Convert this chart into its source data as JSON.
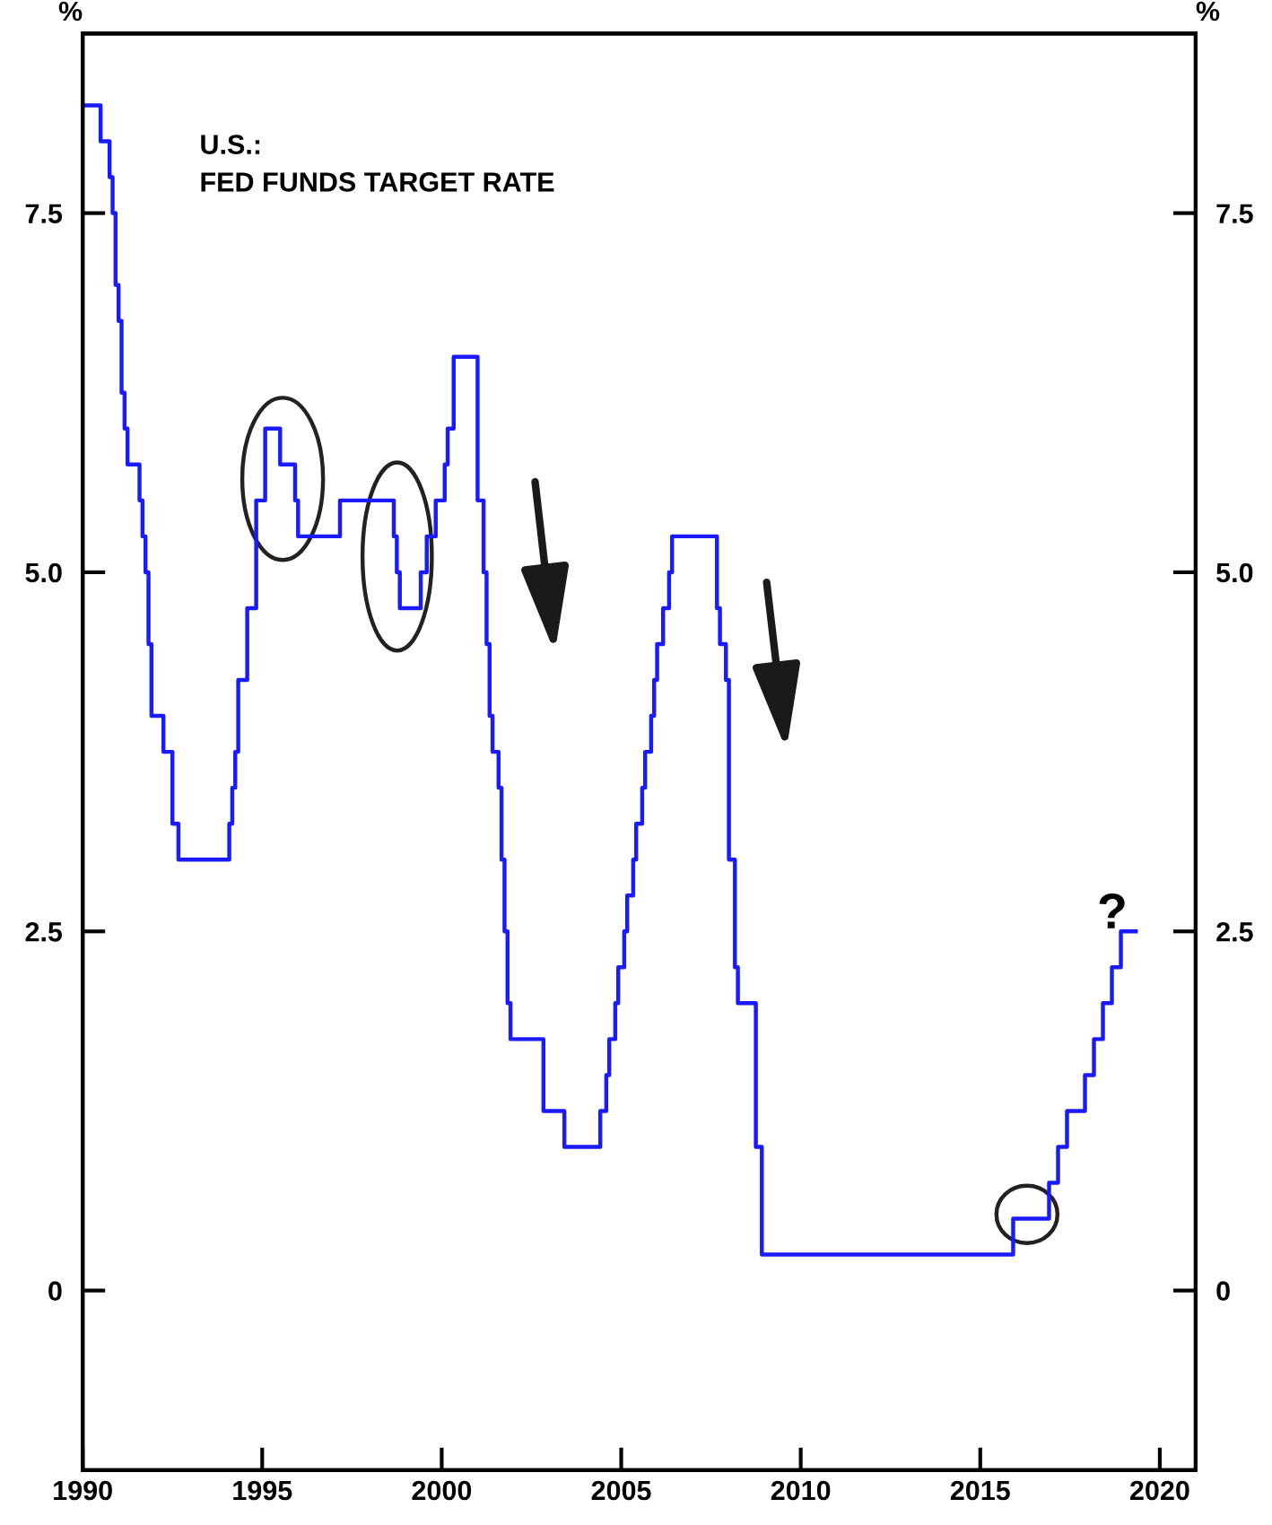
{
  "chart_data": {
    "type": "step",
    "title": "U.S.:\nFED FUNDS TARGET RATE",
    "ylabel": "%",
    "y2label": "%",
    "x": [
      "1990-01",
      "1990-07",
      "1990-10",
      "1990-11",
      "1990-12",
      "1991-01",
      "1991-02",
      "1991-03",
      "1991-04",
      "1991-08",
      "1991-09",
      "1991-10",
      "1991-11",
      "1991-12",
      "1992-04",
      "1992-07",
      "1992-09",
      "1994-02",
      "1994-03",
      "1994-04",
      "1994-05",
      "1994-08",
      "1994-11",
      "1995-02",
      "1995-07",
      "1995-12",
      "1996-01",
      "1997-03",
      "1998-09",
      "1998-10",
      "1998-11",
      "1999-06",
      "1999-08",
      "1999-11",
      "2000-02",
      "2000-03",
      "2000-05",
      "2001-01",
      "2001-03",
      "2001-04",
      "2001-05",
      "2001-06",
      "2001-08",
      "2001-09",
      "2001-10",
      "2001-11",
      "2001-12",
      "2002-11",
      "2003-06",
      "2004-06",
      "2004-08",
      "2004-09",
      "2004-11",
      "2004-12",
      "2005-02",
      "2005-03",
      "2005-05",
      "2005-06",
      "2005-08",
      "2005-09",
      "2005-11",
      "2005-12",
      "2006-01",
      "2006-03",
      "2006-05",
      "2006-06",
      "2007-09",
      "2007-10",
      "2007-12",
      "2008-01",
      "2008-03",
      "2008-04",
      "2008-10",
      "2008-12",
      "2015-12",
      "2016-12",
      "2017-03",
      "2017-06",
      "2017-12",
      "2018-03",
      "2018-06",
      "2018-09",
      "2018-12",
      "2019-05"
    ],
    "series": [
      {
        "color": "#1a1aff",
        "values": [
          8.25,
          8.0,
          7.75,
          7.5,
          7.0,
          6.75,
          6.25,
          6.0,
          5.75,
          5.5,
          5.25,
          5.0,
          4.5,
          4.0,
          3.75,
          3.25,
          3.0,
          3.25,
          3.5,
          3.75,
          4.25,
          4.75,
          5.5,
          6.0,
          5.75,
          5.5,
          5.25,
          5.5,
          5.25,
          5.0,
          4.75,
          5.0,
          5.25,
          5.5,
          5.75,
          6.0,
          6.5,
          5.5,
          5.0,
          4.5,
          4.0,
          3.75,
          3.5,
          3.0,
          2.5,
          2.0,
          1.75,
          1.25,
          1.0,
          1.25,
          1.5,
          1.75,
          2.0,
          2.25,
          2.5,
          2.75,
          3.0,
          3.25,
          3.5,
          3.75,
          4.0,
          4.25,
          4.5,
          4.75,
          5.0,
          5.25,
          4.75,
          4.5,
          4.25,
          3.0,
          2.25,
          2.0,
          1.0,
          0.25,
          0.5,
          0.75,
          1.0,
          1.25,
          1.5,
          1.75,
          2.0,
          2.25,
          2.5,
          2.5
        ]
      }
    ],
    "xlim": [
      "1990",
      "2021"
    ],
    "xticks": [
      "1990",
      "1995",
      "2000",
      "2005",
      "2010",
      "2015",
      "2020"
    ],
    "ylim": [
      -1.25,
      8.75
    ],
    "yticks": [
      {
        "value": 0,
        "label": "0"
      },
      {
        "value": 2.5,
        "label": "2.5"
      },
      {
        "value": 5,
        "label": "5.0"
      },
      {
        "value": 7.5,
        "label": "7.5"
      }
    ],
    "y2lim": [
      -1.25,
      8.75
    ],
    "y2ticks": [
      {
        "value": 0,
        "label": "0"
      },
      {
        "value": 2.5,
        "label": "2.5"
      },
      {
        "value": 5,
        "label": "5.0"
      },
      {
        "value": 7.5,
        "label": "7.5"
      }
    ],
    "annotations": [
      "?"
    ],
    "grid": false,
    "legend": false
  }
}
